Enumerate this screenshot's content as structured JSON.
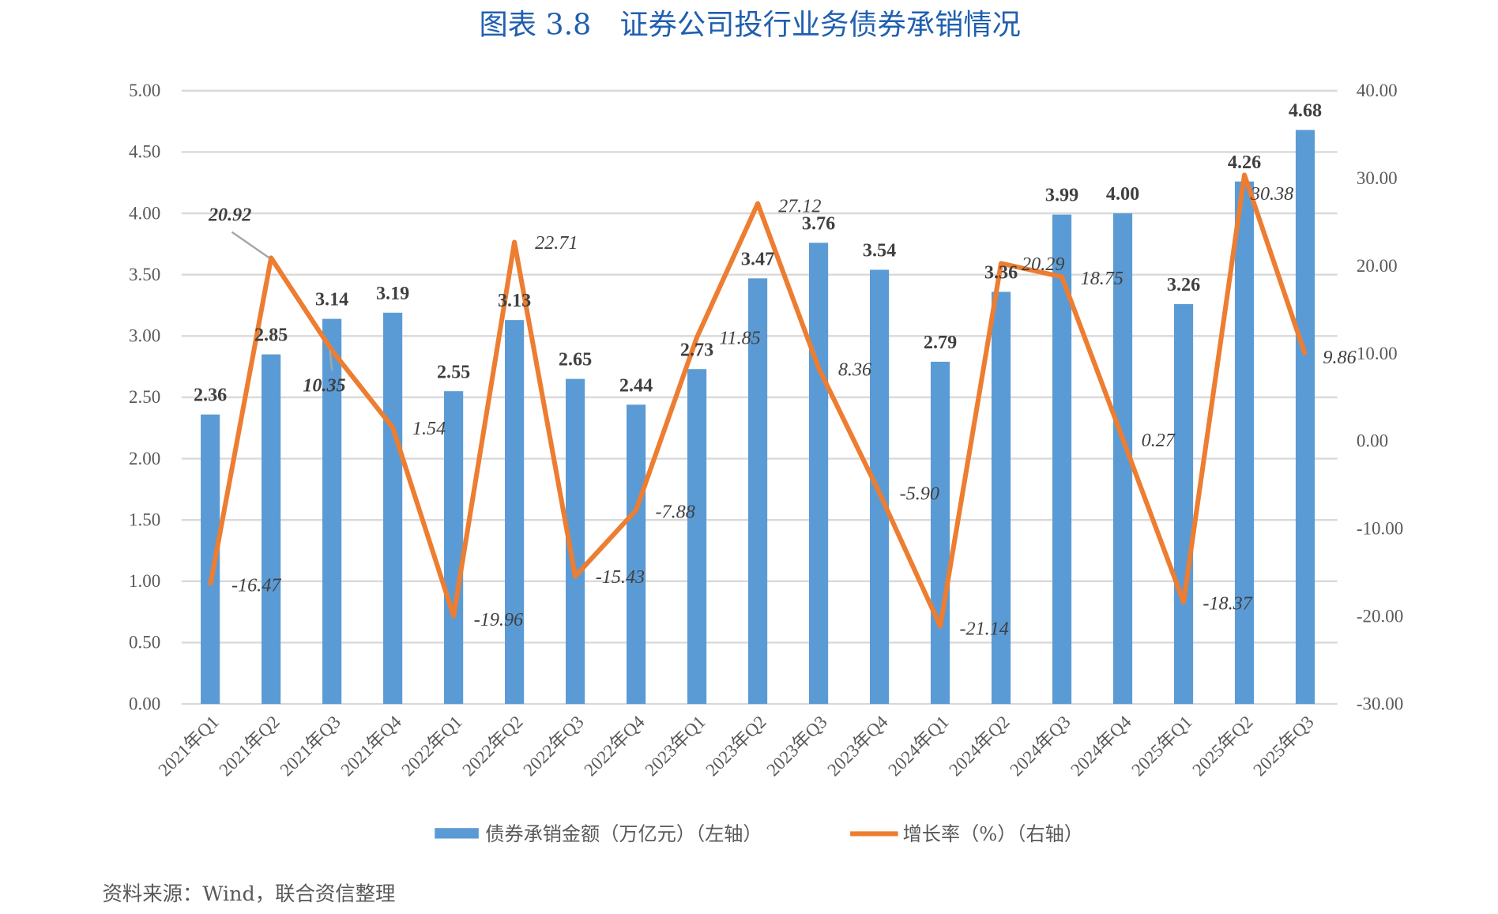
{
  "chart_data": {
    "type": "bar+line",
    "title": "图表 3.8　证券公司投行业务债券承销情况",
    "categories": [
      "2021年Q1",
      "2021年Q2",
      "2021年Q3",
      "2021年Q4",
      "2022年Q1",
      "2022年Q2",
      "2022年Q3",
      "2022年Q4",
      "2023年Q1",
      "2023年Q2",
      "2023年Q3",
      "2023年Q4",
      "2024年Q1",
      "2024年Q2",
      "2024年Q3",
      "2024年Q4",
      "2025年Q1",
      "2025年Q2",
      "2025年Q3"
    ],
    "series": [
      {
        "name": "债券承销金额（万亿元）（左轴）",
        "type": "bar",
        "axis": "left",
        "color": "#5b9bd5",
        "values": [
          2.36,
          2.85,
          3.14,
          3.19,
          2.55,
          3.13,
          2.65,
          2.44,
          2.73,
          3.47,
          3.76,
          3.54,
          2.79,
          3.36,
          3.99,
          4.0,
          3.26,
          4.26,
          4.68
        ]
      },
      {
        "name": "增长率（%）（右轴）",
        "type": "line",
        "axis": "right",
        "color": "#ed7d31",
        "values": [
          -16.47,
          20.92,
          10.35,
          1.54,
          -19.96,
          22.71,
          -15.43,
          -7.88,
          11.85,
          27.12,
          8.36,
          -5.9,
          -21.14,
          20.29,
          18.75,
          0.27,
          -18.37,
          30.38,
          9.86
        ]
      }
    ],
    "left_axis": {
      "range": [
        0,
        5
      ],
      "ticks": [
        "0.00",
        "0.50",
        "1.00",
        "1.50",
        "2.00",
        "2.50",
        "3.00",
        "3.50",
        "4.00",
        "4.50",
        "5.00"
      ]
    },
    "right_axis": {
      "range": [
        -30,
        40
      ],
      "ticks": [
        "-30.00",
        "-20.00",
        "-10.00",
        "0.00",
        "10.00",
        "20.00",
        "30.00",
        "40.00"
      ]
    },
    "grid": true,
    "legend": "bottom",
    "source": "资料来源：Wind，联合资信整理"
  }
}
